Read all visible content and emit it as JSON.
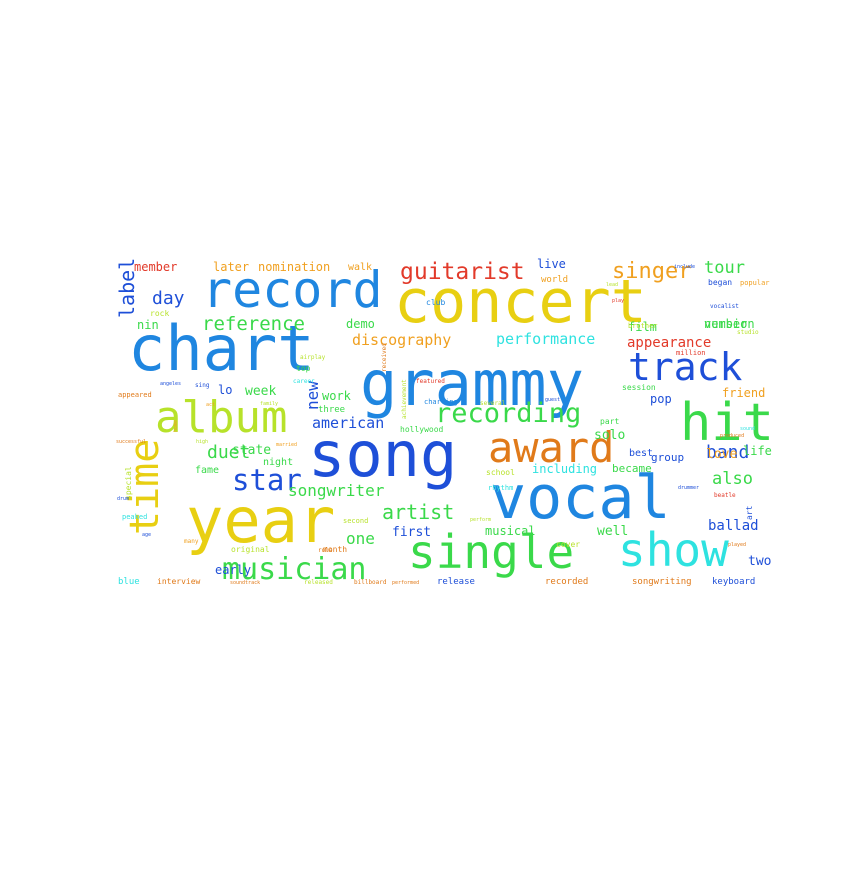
{
  "word_cloud": {
    "colors": {
      "background": "#ffffff",
      "blue": "#1e4fd8",
      "sky": "#1f86e0",
      "cyan": "#2ee2e0",
      "green": "#3ad94a",
      "lime": "#b7e22a",
      "yellow": "#e8cf12",
      "orange": "#f0a020",
      "dark_orange": "#e07a1a",
      "red": "#e23a2a"
    },
    "words": [
      "chart",
      "grammy",
      "concert",
      "record",
      "song",
      "vocal",
      "year",
      "single",
      "show",
      "album",
      "award",
      "hit",
      "track",
      "time",
      "musician",
      "recording",
      "star",
      "guitarist",
      "singer",
      "reference",
      "discography",
      "performance",
      "songwriter",
      "artist",
      "label",
      "american",
      "day",
      "tour",
      "duet",
      "band",
      "one",
      "new",
      "member",
      "later",
      "nomination",
      "walk",
      "live",
      "world",
      "demo",
      "nin",
      "version",
      "number",
      "film",
      "appearance",
      "week",
      "lo",
      "work",
      "friend",
      "solo",
      "pop",
      "state",
      "night",
      "including",
      "became",
      "group",
      "love",
      "life",
      "also",
      "first",
      "musical",
      "well",
      "ballad",
      "early",
      "two",
      "release",
      "recorded",
      "songwriting",
      "keyboard",
      "interview",
      "blue",
      "original",
      "month",
      "cover",
      "fame",
      "three",
      "best",
      "school",
      "hollywood",
      "rhythm",
      "charting",
      "session",
      "part",
      "began",
      "popular",
      "brother",
      "million",
      "club",
      "rock",
      "airplay",
      "top",
      "career",
      "achievement",
      "featured",
      "several",
      "received",
      "special",
      "appeared",
      "second",
      "peaked",
      "many",
      "successful",
      "sing",
      "angeles",
      "drum",
      "perform",
      "beatle",
      "studio",
      "produced",
      "include",
      "vocalist",
      "guest",
      "billboard",
      "released",
      "soundtrack",
      "performed",
      "role",
      "age",
      "art",
      "act",
      "home",
      "sound",
      "drummer",
      "married",
      "lead",
      "play",
      "played",
      "family",
      "high"
    ]
  }
}
